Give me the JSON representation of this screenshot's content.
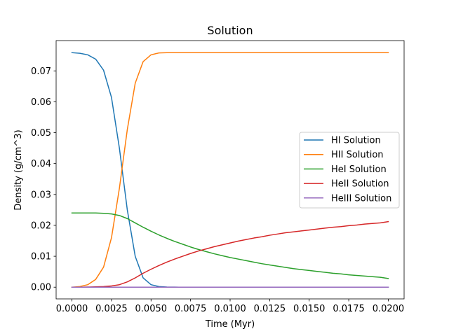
{
  "chart_data": {
    "type": "line",
    "title": "Solution",
    "xlabel": "Time (Myr)",
    "ylabel": "Density (g/cm^3)",
    "xlim": [
      -0.001,
      0.021
    ],
    "ylim": [
      -0.0038,
      0.0798
    ],
    "xticks": [
      0.0,
      0.0025,
      0.005,
      0.0075,
      0.01,
      0.0125,
      0.015,
      0.0175,
      0.02
    ],
    "xtick_labels": [
      "0.0000",
      "0.0025",
      "0.0050",
      "0.0075",
      "0.0100",
      "0.0125",
      "0.0150",
      "0.0175",
      "0.0200"
    ],
    "yticks": [
      0.0,
      0.01,
      0.02,
      0.03,
      0.04,
      0.05,
      0.06,
      0.07
    ],
    "ytick_labels": [
      "0.00",
      "0.01",
      "0.02",
      "0.03",
      "0.04",
      "0.05",
      "0.06",
      "0.07"
    ],
    "grid": false,
    "legend_position": "center-right",
    "x": [
      0.0,
      0.0005,
      0.001,
      0.0015,
      0.002,
      0.0025,
      0.003,
      0.0035,
      0.004,
      0.0045,
      0.005,
      0.0055,
      0.006,
      0.0065,
      0.007,
      0.0075,
      0.008,
      0.0085,
      0.009,
      0.0095,
      0.01,
      0.0105,
      0.011,
      0.0115,
      0.012,
      0.0125,
      0.013,
      0.0135,
      0.014,
      0.0145,
      0.015,
      0.0155,
      0.016,
      0.0165,
      0.017,
      0.0175,
      0.018,
      0.0185,
      0.019,
      0.0195,
      0.02
    ],
    "series": [
      {
        "name": "HI Solution",
        "color": "#1f77b4",
        "values": [
          0.0759,
          0.0757,
          0.0752,
          0.0738,
          0.0702,
          0.0614,
          0.045,
          0.025,
          0.01,
          0.003,
          0.0008,
          0.0002,
          5e-05,
          1e-05,
          0.0,
          0.0,
          0.0,
          0.0,
          0.0,
          0.0,
          0.0,
          0.0,
          0.0,
          0.0,
          0.0,
          0.0,
          0.0,
          0.0,
          0.0,
          0.0,
          0.0,
          0.0,
          0.0,
          0.0,
          0.0,
          0.0,
          0.0,
          0.0,
          0.0,
          0.0,
          0.0
        ]
      },
      {
        "name": "HII Solution",
        "color": "#ff7f0e",
        "values": [
          0.0,
          0.0002,
          0.0008,
          0.0025,
          0.0065,
          0.016,
          0.032,
          0.051,
          0.066,
          0.073,
          0.0752,
          0.0758,
          0.0759,
          0.0759,
          0.0759,
          0.0759,
          0.0759,
          0.0759,
          0.0759,
          0.0759,
          0.0759,
          0.0759,
          0.0759,
          0.0759,
          0.0759,
          0.0759,
          0.0759,
          0.0759,
          0.0759,
          0.0759,
          0.0759,
          0.0759,
          0.0759,
          0.0759,
          0.0759,
          0.0759,
          0.0759,
          0.0759,
          0.0759,
          0.0759,
          0.0759
        ]
      },
      {
        "name": "HeI Solution",
        "color": "#2ca02c",
        "values": [
          0.024,
          0.024,
          0.024,
          0.024,
          0.0239,
          0.0237,
          0.0232,
          0.0222,
          0.0208,
          0.0194,
          0.0181,
          0.0169,
          0.0158,
          0.0148,
          0.0139,
          0.013,
          0.0122,
          0.0115,
          0.0108,
          0.0102,
          0.0096,
          0.0091,
          0.0086,
          0.0081,
          0.0076,
          0.0072,
          0.0068,
          0.0064,
          0.006,
          0.0057,
          0.0054,
          0.0051,
          0.0048,
          0.0045,
          0.0043,
          0.004,
          0.0038,
          0.0036,
          0.0034,
          0.0032,
          0.0028
        ]
      },
      {
        "name": "HeII Solution",
        "color": "#d62728",
        "values": [
          0.0,
          0.0,
          5e-05,
          0.0001,
          0.0002,
          0.0004,
          0.0008,
          0.0017,
          0.003,
          0.0045,
          0.0058,
          0.007,
          0.0081,
          0.0091,
          0.01,
          0.0109,
          0.0117,
          0.0124,
          0.0131,
          0.0137,
          0.0143,
          0.0149,
          0.0154,
          0.0159,
          0.0163,
          0.0168,
          0.0172,
          0.0176,
          0.0179,
          0.0182,
          0.0185,
          0.0188,
          0.0191,
          0.0194,
          0.0196,
          0.0199,
          0.0201,
          0.0204,
          0.0206,
          0.0208,
          0.0212
        ]
      },
      {
        "name": "HeIII Solution",
        "color": "#9467bd",
        "values": [
          0.0,
          0.0,
          0.0,
          0.0,
          0.0,
          0.0,
          0.0,
          0.0,
          0.0,
          0.0,
          0.0,
          0.0,
          0.0,
          0.0,
          0.0,
          0.0,
          0.0,
          0.0,
          0.0,
          0.0,
          0.0,
          0.0,
          0.0,
          0.0,
          0.0,
          0.0,
          0.0,
          0.0,
          0.0,
          0.0,
          0.0,
          0.0,
          0.0,
          0.0,
          0.0,
          0.0,
          0.0,
          0.0,
          0.0,
          0.0,
          0.0
        ]
      }
    ]
  }
}
